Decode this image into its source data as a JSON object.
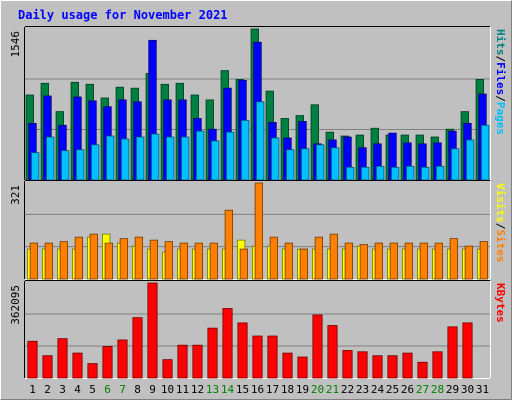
{
  "chart_data": {
    "type": "bar",
    "title": "Daily usage for November 2021",
    "days": [
      "1",
      "2",
      "3",
      "4",
      "5",
      "6",
      "7",
      "8",
      "9",
      "10",
      "11",
      "12",
      "13",
      "14",
      "15",
      "16",
      "17",
      "18",
      "19",
      "20",
      "21",
      "22",
      "23",
      "24",
      "25",
      "26",
      "27",
      "28",
      "29",
      "30",
      "31"
    ],
    "weekend_days": [
      "6",
      "7",
      "13",
      "14",
      "20",
      "21",
      "27",
      "28"
    ],
    "panels": [
      {
        "id": "hits-files-pages",
        "ymax": 1546,
        "ymax_label": "1546",
        "right_labels": [
          {
            "text": "Hits",
            "color": "#008080"
          },
          {
            "text": "/",
            "color": "#000000"
          },
          {
            "text": "Files",
            "color": "#0000ff"
          },
          {
            "text": "/",
            "color": "#000000"
          },
          {
            "text": "Pages",
            "color": "#00c0ff"
          }
        ],
        "series": [
          {
            "name": "Hits",
            "color": "#008040",
            "values": [
              870,
              990,
              700,
              1000,
              980,
              840,
              950,
              940,
              1090,
              980,
              990,
              870,
              820,
              1120,
              1030,
              1546,
              910,
              630,
              660,
              770,
              490,
              450,
              460,
              530,
              460,
              460,
              460,
              440,
              520,
              700,
              1030
            ]
          },
          {
            "name": "Files",
            "color": "#0000ff",
            "values": [
              580,
              860,
              560,
              850,
              810,
              750,
              820,
              800,
              1430,
              820,
              820,
              630,
              520,
              940,
              1020,
              1410,
              590,
              430,
              600,
              370,
              410,
              440,
              330,
              370,
              480,
              380,
              370,
              380,
              500,
              580,
              880
            ]
          },
          {
            "name": "Pages",
            "color": "#00c0ff",
            "values": [
              280,
              440,
              300,
              310,
              360,
              450,
              420,
              440,
              470,
              440,
              440,
              500,
              400,
              490,
              610,
              800,
              430,
              310,
              320,
              360,
              330,
              130,
              130,
              140,
              130,
              140,
              130,
              140,
              320,
              410,
              560
            ]
          }
        ]
      },
      {
        "id": "visits-sites",
        "ymax": 321,
        "ymax_label": "321",
        "right_labels": [
          {
            "text": "Visits",
            "color": "#ffff00"
          },
          {
            "text": "/",
            "color": "#000000"
          },
          {
            "text": "Sites",
            "color": "#ff8000"
          }
        ],
        "series": [
          {
            "name": "Visits",
            "color": "#ffff00",
            "values": [
              100,
              100,
              100,
              100,
              140,
              150,
              120,
              110,
              100,
              90,
              100,
              100,
              100,
              100,
              130,
              110,
              110,
              100,
              100,
              100,
              100,
              100,
              110,
              100,
              100,
              100,
              100,
              100,
              100,
              100,
              100
            ]
          },
          {
            "name": "Sites",
            "color": "#ff8000",
            "values": [
              120,
              120,
              125,
              140,
              150,
              120,
              135,
              140,
              130,
              125,
              120,
              120,
              120,
              230,
              100,
              321,
              140,
              120,
              100,
              140,
              150,
              120,
              115,
              120,
              120,
              120,
              120,
              120,
              135,
              110,
              125
            ]
          }
        ]
      },
      {
        "id": "kbytes",
        "ymax": 362095,
        "ymax_label": "362095",
        "right_labels": [
          {
            "text": "KBytes",
            "color": "#ff0000"
          }
        ],
        "series": [
          {
            "name": "KBytes",
            "color": "#ff0000",
            "values": [
              140000,
              85000,
              150000,
              95000,
              55000,
              120000,
              145000,
              230000,
              362095,
              70000,
              125000,
              125000,
              190000,
              265000,
              210000,
              160000,
              160000,
              95000,
              80000,
              240000,
              200000,
              105000,
              100000,
              85000,
              85000,
              95000,
              60000,
              100000,
              195000,
              210000,
              0
            ]
          }
        ]
      }
    ]
  },
  "colors": {
    "background": "#c0c0c0",
    "plot_background": "#c0c0c0",
    "title": "#0000ff",
    "weekday_label": "#000000",
    "weekend_label": "#008000",
    "gridline": "#808080"
  }
}
